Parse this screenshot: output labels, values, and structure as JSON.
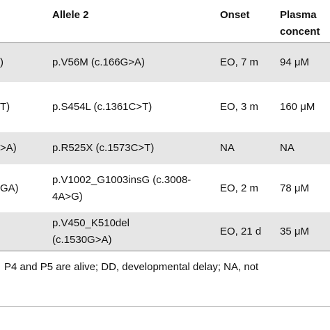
{
  "table": {
    "header": [
      "Allele 2",
      "Onset",
      "Plasma concent"
    ],
    "rows": [
      [
        ")",
        "p.V56M (c.166G>A)",
        "EO, 7 m",
        "94 μM"
      ],
      [
        "T)",
        "p.S454L (c.1361C>T)",
        "EO, 3 m",
        "160 μM"
      ],
      [
        ">A)",
        "p.R525X (c.1573C>T)",
        "NA",
        "NA"
      ],
      [
        "GA)",
        "p.V1002_G1003insG (c.3008-4A>G)",
        "EO, 2 m",
        "78 μM"
      ],
      [
        null,
        "p.V450_K510del (c.1530G>A)",
        "EO, 21 d",
        "35 μM"
      ]
    ]
  },
  "footnote": "P4 and P5 are alive; DD, developmental delay; NA, not"
}
